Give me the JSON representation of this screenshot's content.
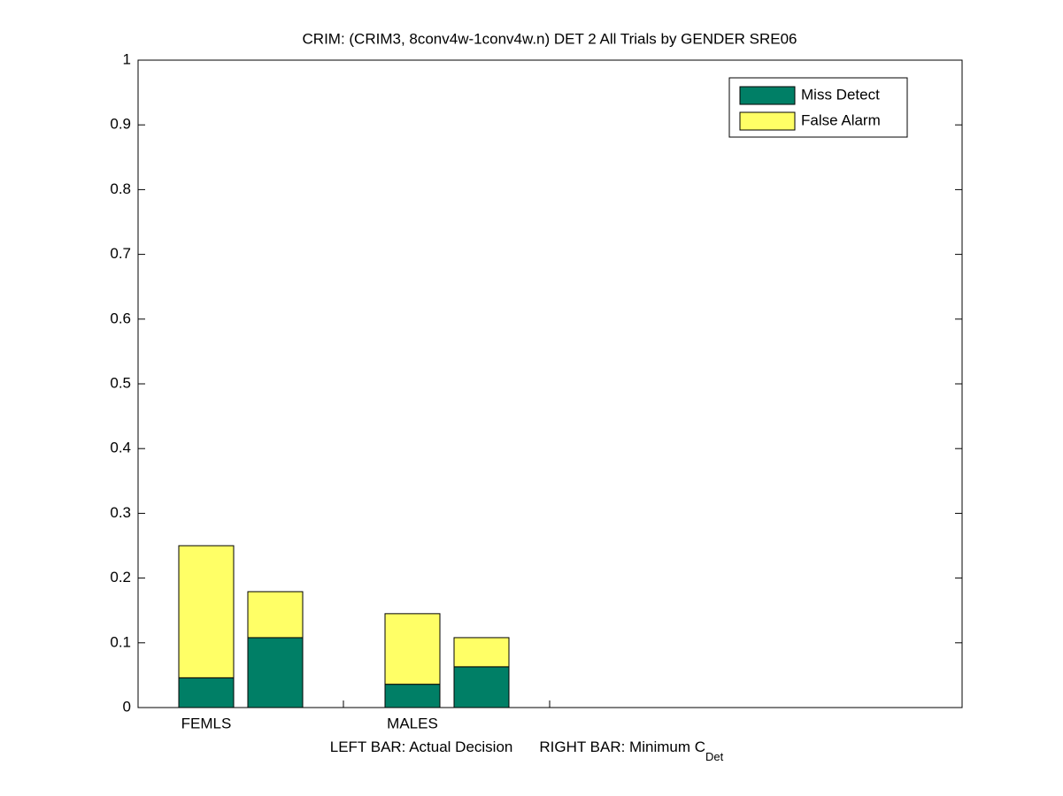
{
  "chart_data": {
    "type": "stacked-bar-pairs",
    "title": "CRIM: (CRIM3, 8conv4w-1conv4w.n) DET 2 All Trials by GENDER SRE06",
    "categories": [
      "FEMLS",
      "MALES"
    ],
    "series": [
      {
        "name": "Miss Detect",
        "color": "#007f66",
        "values": [
          [
            0.046,
            0.108
          ],
          [
            0.036,
            0.063
          ]
        ]
      },
      {
        "name": "False Alarm",
        "color": "#ffff66",
        "values": [
          [
            0.204,
            0.071
          ],
          [
            0.109,
            0.045
          ]
        ]
      }
    ],
    "xlabel_left": "LEFT BAR: Actual Decision",
    "xlabel_right": "RIGHT BAR: Minimum C",
    "xlabel_subscript": "Det",
    "ylim": [
      0,
      1
    ],
    "yticks": [
      0,
      0.1,
      0.2,
      0.3,
      0.4,
      0.5,
      0.6,
      0.7,
      0.8,
      0.9,
      1
    ],
    "grid": false,
    "legend": "top-right"
  }
}
